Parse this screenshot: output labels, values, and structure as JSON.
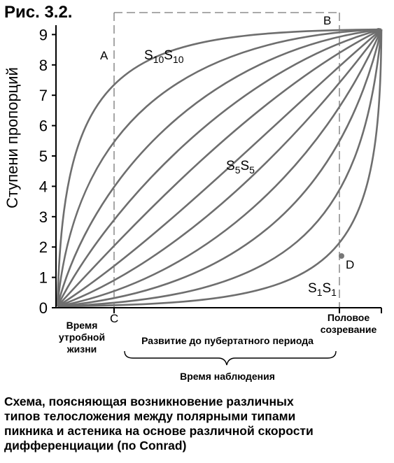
{
  "figure_label": "Рис. 3.2.",
  "y_axis_title": "Ступени пропорций",
  "y_ticks": [
    "0",
    "1",
    "2",
    "3",
    "4",
    "5",
    "6",
    "7",
    "8",
    "9"
  ],
  "points": {
    "A": "A",
    "B": "B",
    "C": "C",
    "D": "D"
  },
  "curve_labels": {
    "top": {
      "main": "S",
      "sub": "10",
      "main2": "S",
      "sub2": "10"
    },
    "middle": {
      "main": "S",
      "sub": "5",
      "main2": "S",
      "sub2": "5"
    },
    "bottom": {
      "main": "S",
      "sub": "1",
      "main2": "S",
      "sub2": "1"
    }
  },
  "time_labels": {
    "prenatal": [
      "Время",
      "утробной",
      "жизни"
    ],
    "puberty": [
      "Половое",
      "созревание"
    ],
    "development": "Развитие до пубертатного периода",
    "observation": "Время наблюдения"
  },
  "caption": [
    "Схема, поясняющая возникновение различных",
    "типов телосложения между полярными типами",
    "пикника и астеника на основе различной скорости",
    "дифференциации (по Conrad)"
  ],
  "colors": {
    "curve": "#6e6e6e",
    "axis": "#000000",
    "dashed": "#777777"
  }
}
